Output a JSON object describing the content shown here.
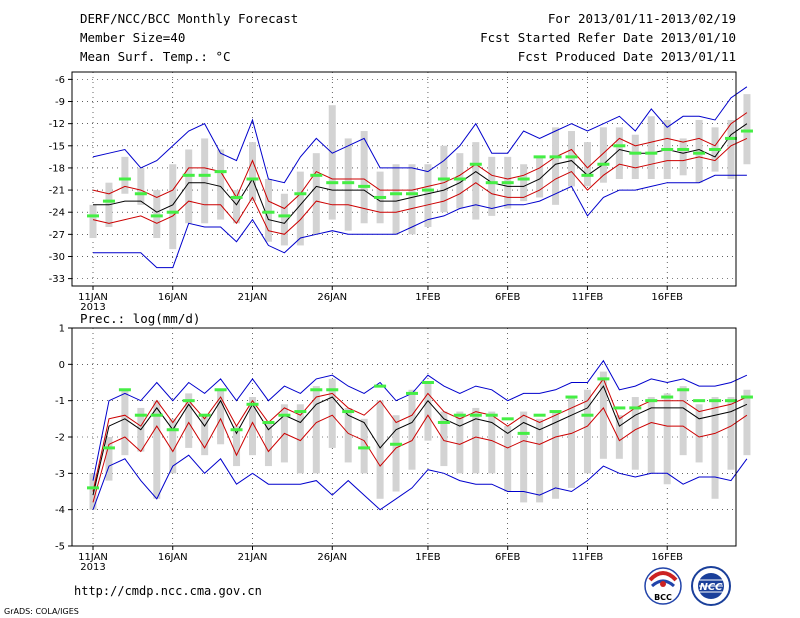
{
  "header": {
    "title": "DERF/NCC/BCC Monthly Forecast",
    "member_size": "Member Size=40",
    "variable": "Mean Surf. Temp.: °C",
    "period": "For 2013/01/11-2013/02/19",
    "start_date": "Fcst Started Refer Date 2013/01/10",
    "produced_date": "Fcst Produced Date 2013/01/11"
  },
  "colors": {
    "range": "#0000cc",
    "spread": "#cc0000",
    "mean": "#000000",
    "bars": "#d3d3d3",
    "observed": "#44ee44"
  },
  "chart_data": [
    {
      "type": "line",
      "name": "temperature",
      "title": "Mean Surf. Temp.: °C",
      "ylim": [
        -34,
        -5
      ],
      "yticks": [
        -6,
        -9,
        -12,
        -15,
        -18,
        -21,
        -24,
        -27,
        -30,
        -33
      ],
      "xticks": [
        {
          "day": 0,
          "label": "11JAN"
        },
        {
          "day": 5,
          "label": "16JAN"
        },
        {
          "day": 10,
          "label": "21JAN"
        },
        {
          "day": 15,
          "label": "26JAN"
        },
        {
          "day": 21,
          "label": "1FEB"
        },
        {
          "day": 26,
          "label": "6FEB"
        },
        {
          "day": 31,
          "label": "11FEB"
        },
        {
          "day": 36,
          "label": "16FEB"
        }
      ],
      "year_label": "2013",
      "series": {
        "max": [
          -16.5,
          -16,
          -15.5,
          -18,
          -17,
          -15,
          -13,
          -12,
          -16,
          -17,
          -11.5,
          -19.5,
          -20,
          -16.5,
          -14,
          -16,
          -15,
          -14,
          -18,
          -18,
          -18,
          -18.5,
          -17,
          -15,
          -12,
          -16,
          -16,
          -13,
          -14,
          -13,
          -12,
          -13,
          -12,
          -11,
          -13,
          -10,
          -12.5,
          -11,
          -11,
          -11.5,
          -8.5,
          -7
        ],
        "p_high": [
          -21,
          -21.5,
          -20.5,
          -21,
          -22,
          -21,
          -18,
          -18,
          -18.5,
          -22,
          -17,
          -22.5,
          -23.5,
          -21.5,
          -18.5,
          -19.5,
          -19.5,
          -19.5,
          -21,
          -21,
          -21,
          -20.5,
          -20,
          -19,
          -17.5,
          -19,
          -19.5,
          -19,
          -18,
          -16.5,
          -15.5,
          -18,
          -16,
          -14,
          -15,
          -14.5,
          -14,
          -14.5,
          -14,
          -15,
          -12,
          -10.5
        ],
        "mean": [
          -23,
          -23,
          -22.5,
          -22.5,
          -24,
          -23,
          -20,
          -20,
          -20.5,
          -23,
          -19.5,
          -25,
          -25.5,
          -23,
          -20.5,
          -21,
          -21,
          -21,
          -22.5,
          -22.5,
          -22,
          -21.5,
          -21,
          -20,
          -18.5,
          -20,
          -20.5,
          -20.5,
          -19.5,
          -17.5,
          -17,
          -19,
          -17.5,
          -15.5,
          -16,
          -16,
          -15.5,
          -16,
          -15.5,
          -16.5,
          -13.5,
          -12
        ],
        "p_low": [
          -25,
          -25.5,
          -25,
          -24.5,
          -25.5,
          -24.5,
          -22.5,
          -23,
          -23,
          -25.5,
          -22,
          -26.5,
          -27,
          -25,
          -22.5,
          -23,
          -23,
          -23.5,
          -24,
          -24,
          -23.5,
          -23,
          -22.5,
          -21.5,
          -20,
          -21.5,
          -22,
          -22,
          -21,
          -19.5,
          -18.5,
          -21,
          -19,
          -17.5,
          -18,
          -17.5,
          -17,
          -17,
          -16.5,
          -17,
          -15,
          -14
        ],
        "min": [
          -29.5,
          -29.5,
          -29.5,
          -29.5,
          -31.5,
          -31.5,
          -25.5,
          -26,
          -26,
          -28,
          -25,
          -28.5,
          -29.5,
          -27.5,
          -27,
          -26.5,
          -27,
          -27,
          -27,
          -27,
          -26,
          -25,
          -24.5,
          -23.5,
          -23,
          -23.5,
          -23,
          -23,
          -22.5,
          -21.5,
          -20.5,
          -24.5,
          -22,
          -21,
          -21,
          -20.5,
          -20,
          -20,
          -20,
          -19,
          -19,
          -19
        ]
      },
      "bars_low": [
        -27.5,
        -26,
        -21.5,
        -23,
        -27.5,
        -29,
        -25.5,
        -25.5,
        -25,
        -25.5,
        -22.5,
        -28,
        -28.5,
        -28.5,
        -27,
        -25,
        -26.5,
        -25.5,
        -25.5,
        -27,
        -27,
        -26,
        -24,
        -23.5,
        -25,
        -24.5,
        -23.5,
        -22.5,
        -22,
        -23,
        -20.5,
        -20.5,
        -20,
        -19.5,
        -19.5,
        -19.5,
        -19.5,
        -19,
        -20,
        -18.5,
        -19.5,
        -17.5
      ],
      "bars_high": [
        -23,
        -20,
        -16.5,
        -18,
        -21,
        -17.5,
        -15.5,
        -14,
        -15.5,
        -21,
        -14.5,
        -19.5,
        -21.5,
        -18.5,
        -16,
        -9.5,
        -14,
        -13,
        -18.5,
        -17.5,
        -17.5,
        -17.5,
        -15,
        -16,
        -14.5,
        -16.5,
        -16.5,
        -17.5,
        -16.5,
        -12.5,
        -13,
        -14.5,
        -12.5,
        -12.5,
        -13.5,
        -11,
        -11.5,
        -14,
        -11.5,
        -12.5,
        -11.5,
        -8
      ],
      "observed": [
        -24.5,
        -22.5,
        -19.5,
        -21.5,
        -24.5,
        -24,
        -19,
        -19,
        -18.5,
        -22,
        -19.5,
        -24,
        -24.5,
        -21.5,
        -19,
        -20,
        -20,
        -20.5,
        -22,
        -21.5,
        -21.5,
        -21,
        -19.5,
        -19.5,
        -17.5,
        -20,
        -20,
        -19.5,
        -16.5,
        -16.5,
        -16.5,
        -19,
        -17.5,
        -15,
        -16,
        -16,
        -15.5,
        -15.5,
        -16,
        -15.5,
        -14,
        -13
      ]
    },
    {
      "type": "line",
      "name": "precipitation",
      "title": "Prec.: log(mm/d)",
      "ylim": [
        -5,
        1
      ],
      "yticks": [
        1,
        0,
        -1,
        -2,
        -3,
        -4,
        -5
      ],
      "xticks": [
        {
          "day": 0,
          "label": "11JAN"
        },
        {
          "day": 5,
          "label": "16JAN"
        },
        {
          "day": 10,
          "label": "21JAN"
        },
        {
          "day": 15,
          "label": "26JAN"
        },
        {
          "day": 21,
          "label": "1FEB"
        },
        {
          "day": 26,
          "label": "6FEB"
        },
        {
          "day": 31,
          "label": "11FEB"
        },
        {
          "day": 36,
          "label": "16FEB"
        }
      ],
      "year_label": "2013",
      "series": {
        "max": [
          -3.2,
          -1,
          -0.8,
          -1,
          -0.5,
          -1,
          -0.5,
          -0.8,
          -0.4,
          -1,
          -0.4,
          -1,
          -0.6,
          -0.8,
          -0.4,
          -0.3,
          -0.6,
          -0.8,
          -0.5,
          -1,
          -0.8,
          -0.3,
          -0.6,
          -0.8,
          -0.6,
          -0.7,
          -1,
          -0.8,
          -0.8,
          -0.7,
          -0.5,
          -0.5,
          0.1,
          -0.7,
          -0.6,
          -0.4,
          -0.5,
          -0.4,
          -0.6,
          -0.6,
          -0.5,
          -0.3
        ],
        "p_high": [
          -3.5,
          -1.5,
          -1.4,
          -1.7,
          -1,
          -1.6,
          -1,
          -1.5,
          -0.9,
          -1.7,
          -1,
          -1.6,
          -1.2,
          -1.4,
          -0.9,
          -0.8,
          -1.2,
          -1.4,
          -1,
          -1.6,
          -1.4,
          -0.8,
          -1.3,
          -1.5,
          -1.3,
          -1.4,
          -1.7,
          -1.4,
          -1.6,
          -1.4,
          -1.2,
          -1,
          -0.4,
          -1.5,
          -1.2,
          -1,
          -1,
          -1,
          -1.3,
          -1.2,
          -1.1,
          -0.9
        ],
        "mean": [
          -3.6,
          -1.7,
          -1.5,
          -1.8,
          -1.2,
          -1.8,
          -1.1,
          -1.7,
          -1,
          -1.9,
          -1.1,
          -1.8,
          -1.4,
          -1.6,
          -1.1,
          -0.9,
          -1.4,
          -1.6,
          -2.3,
          -1.8,
          -1.6,
          -1,
          -1.5,
          -1.7,
          -1.5,
          -1.6,
          -1.9,
          -1.6,
          -1.8,
          -1.6,
          -1.4,
          -1.2,
          -0.6,
          -1.7,
          -1.4,
          -1.2,
          -1.2,
          -1.2,
          -1.5,
          -1.4,
          -1.3,
          -1.1
        ],
        "p_low": [
          -3.8,
          -2.2,
          -2,
          -2.4,
          -1.7,
          -2.4,
          -1.6,
          -2.3,
          -1.5,
          -2.5,
          -1.6,
          -2.4,
          -1.9,
          -2.1,
          -1.6,
          -1.4,
          -1.9,
          -2.1,
          -2.8,
          -2.3,
          -2.1,
          -1.4,
          -2.1,
          -2.2,
          -2,
          -2.1,
          -2.3,
          -2.1,
          -2.2,
          -2,
          -1.9,
          -1.7,
          -1.2,
          -2.1,
          -1.8,
          -1.6,
          -1.7,
          -1.7,
          -2,
          -1.9,
          -1.7,
          -1.4
        ],
        "min": [
          -4,
          -2.8,
          -2.6,
          -3.2,
          -3.7,
          -2.8,
          -2.5,
          -3,
          -2.6,
          -3.3,
          -3,
          -3.3,
          -3.3,
          -3.3,
          -3.2,
          -3.6,
          -3.2,
          -3.6,
          -4,
          -3.7,
          -3.4,
          -2.9,
          -3,
          -3.2,
          -3.3,
          -3.3,
          -3.5,
          -3.5,
          -3.6,
          -3.4,
          -3.5,
          -3.2,
          -2.8,
          -3,
          -3.1,
          -3,
          -3,
          -3.3,
          -3.1,
          -3.1,
          -3.2,
          -2.6
        ]
      },
      "bars_low": [
        -4,
        -3.2,
        -2.5,
        -2.4,
        -3.7,
        -3,
        -2.3,
        -2.5,
        -2.2,
        -2.8,
        -2.5,
        -2.8,
        -2.7,
        -3,
        -3,
        -2.3,
        -2.7,
        -3,
        -3.7,
        -3.5,
        -2.9,
        -2.1,
        -2.8,
        -3,
        -3,
        -3,
        -3.5,
        -3.8,
        -3.8,
        -3.7,
        -3.4,
        -3,
        -2.6,
        -2.6,
        -2.9,
        -3,
        -3.3,
        -2.5,
        -2.7,
        -3.7,
        -2.9,
        -2.5
      ],
      "bars_high": [
        -3,
        -2,
        -0.7,
        -1.2,
        -1,
        -1.5,
        -0.8,
        -1.4,
        -0.7,
        -1.7,
        -0.9,
        -1.6,
        -1.1,
        -1.1,
        -0.6,
        -0.4,
        -1.2,
        -1.5,
        -1,
        -1.4,
        -0.7,
        -0.5,
        -1.3,
        -1.3,
        -1.2,
        -1.3,
        -1.7,
        -1.3,
        -1.5,
        -1.3,
        -0.9,
        -0.7,
        -0.2,
        -1.4,
        -0.9,
        -0.9,
        -0.8,
        -0.6,
        -1.1,
        -0.9,
        -0.9,
        -0.7
      ],
      "observed": [
        -3.4,
        -2.3,
        -0.7,
        -1.4,
        -1.4,
        -1.8,
        -1,
        -1.4,
        -0.7,
        -1.8,
        -1.1,
        -1.6,
        -1.4,
        -1.3,
        -0.7,
        -0.7,
        -1.3,
        -2.3,
        -0.6,
        -2.2,
        -0.8,
        -0.5,
        -1.6,
        -1.4,
        -1.4,
        -1.4,
        -1.5,
        -1.9,
        -1.4,
        -1.3,
        -0.9,
        -1.4,
        -0.4,
        -1.2,
        -1.2,
        -1.0,
        -0.9,
        -0.7,
        -1,
        -1,
        -1,
        -0.9
      ]
    }
  ],
  "footer": {
    "url": "http://cmdp.ncc.cma.gov.cn",
    "credit": "GrADS: COLA/IGES",
    "logo_bcc": "BCC",
    "logo_ncc": "NCC"
  }
}
